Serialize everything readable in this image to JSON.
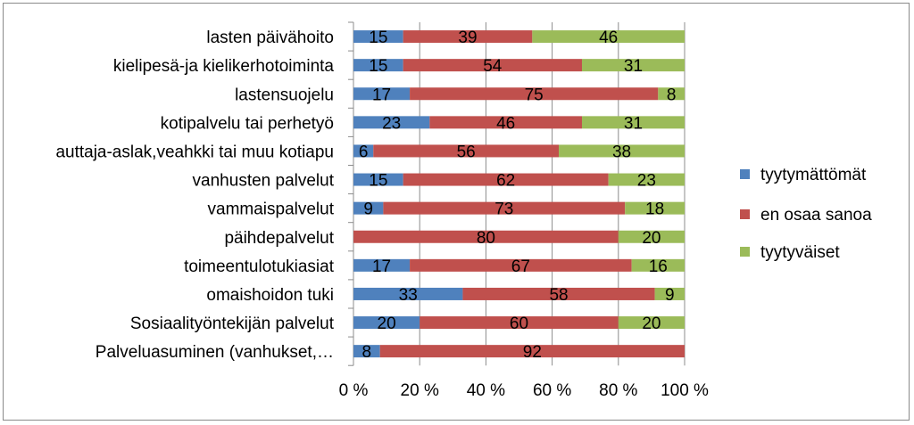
{
  "chart_data": {
    "type": "bar",
    "orientation": "horizontal",
    "stacked": "percent",
    "categories": [
      "lasten päivähoito",
      "kielipesä-ja kielikerhotoiminta",
      "lastensuojelu",
      "kotipalvelu tai perhetyö",
      "auttaja-aslak,veahkki tai muu kotiapu",
      "vanhusten palvelut",
      "vammaispalvelut",
      "päihdepalvelut",
      "toimeentulotukiasiat",
      "omaishoidon tuki",
      "Sosiaalityöntekijän palvelut",
      "Palveluasuminen (vanhukset,…"
    ],
    "series": [
      {
        "name": "tyytymättömät",
        "color": "#4f81bd",
        "values": [
          15,
          15,
          17,
          23,
          6,
          15,
          9,
          0,
          17,
          33,
          20,
          8
        ]
      },
      {
        "name": "en osaa sanoa",
        "color": "#c0504d",
        "values": [
          39,
          54,
          75,
          46,
          56,
          62,
          73,
          80,
          67,
          58,
          60,
          92
        ]
      },
      {
        "name": "tyytyväiset",
        "color": "#9bbb59",
        "values": [
          46,
          31,
          8,
          31,
          38,
          23,
          18,
          20,
          16,
          9,
          20,
          0
        ]
      }
    ],
    "x_ticks": [
      "0 %",
      "20 %",
      "40 %",
      "60 %",
      "80 %",
      "100 %"
    ],
    "xlim": [
      0,
      100
    ],
    "grid": true,
    "legend": "right",
    "title": "",
    "xlabel": "",
    "ylabel": ""
  }
}
